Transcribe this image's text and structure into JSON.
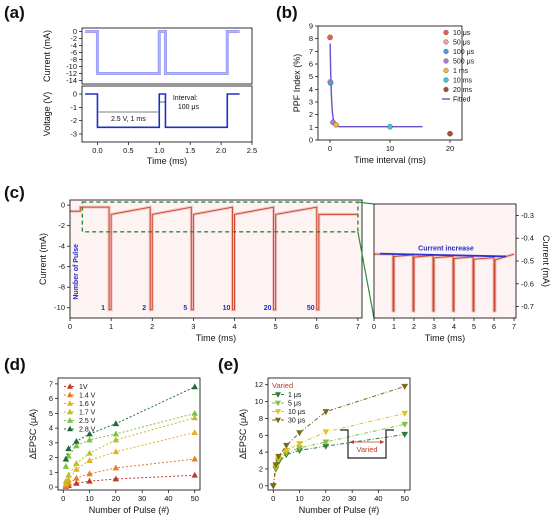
{
  "panel_labels": [
    "(a)",
    "(b)",
    "(c)",
    "(d)",
    "(e)"
  ],
  "chart_data": [
    {
      "panel": "(a)",
      "type": "line",
      "xlabel": "Time (ms)",
      "ylabel_top": "Current (mA)",
      "ylabel_bottom": "Voltage (V)",
      "x_ticks": [
        "0.0",
        "0.5",
        "1.0",
        "1.5",
        "2.0",
        "2.5"
      ],
      "y_ticks_top": [
        "0",
        "-2",
        "-4",
        "-6",
        "-8",
        "-10",
        "-12",
        "-14"
      ],
      "y_ticks_bottom": [
        "0",
        "-1",
        "-2",
        "-3"
      ],
      "xlim": [
        -0.25,
        2.5
      ],
      "annotations": [
        "2.5 V, 1 ms",
        "Interval:",
        "100 μs"
      ],
      "pulses": [
        [
          0.0,
          1.0
        ],
        [
          1.1,
          2.1
        ]
      ],
      "pulse_voltage": -2.5,
      "current_baseline": 0,
      "current_plateau": -12
    },
    {
      "panel": "(b)",
      "type": "scatter",
      "xlabel": "Time interval (ms)",
      "ylabel": "PPF Index (%)",
      "x_ticks": [
        "0",
        "10",
        "20"
      ],
      "y_ticks": [
        "0",
        "1",
        "2",
        "3",
        "4",
        "5",
        "6",
        "7",
        "8",
        "9"
      ],
      "xlim": [
        -2,
        22
      ],
      "ylim": [
        0,
        9
      ],
      "series": [
        {
          "name": "10 μs",
          "color": "#e8614a",
          "points": [
            [
              0.01,
              8.1
            ]
          ]
        },
        {
          "name": "50 μs",
          "color": "#f0a0a0",
          "points": [
            [
              0.05,
              4.6
            ]
          ]
        },
        {
          "name": "100 μs",
          "color": "#4aa3df",
          "points": [
            [
              0.1,
              4.5
            ]
          ]
        },
        {
          "name": "500 μs",
          "color": "#b07ad0",
          "points": [
            [
              0.5,
              1.4
            ]
          ]
        },
        {
          "name": "1 ms",
          "color": "#f2b632",
          "points": [
            [
              1,
              1.2
            ]
          ]
        },
        {
          "name": "10 ms",
          "color": "#3ec6d6",
          "points": [
            [
              10,
              1.05
            ]
          ]
        },
        {
          "name": "20 ms",
          "color": "#a0522d",
          "points": [
            [
              20,
              0.5
            ]
          ]
        }
      ],
      "fitted_label": "Fitted",
      "fit_color": "#6a4fc7"
    },
    {
      "panel": "(c)",
      "type": "line",
      "xlabel_left": "Time (ms)",
      "xlabel_right": "Time (ms)",
      "ylabel_left": "Current (mA)",
      "ylabel_right": "Current (mA)",
      "x_ticks": [
        "0",
        "1",
        "2",
        "3",
        "4",
        "5",
        "6",
        "7"
      ],
      "y_ticks_left": [
        "0",
        "-2",
        "-4",
        "-6",
        "-8",
        "-10"
      ],
      "y_ticks_right": [
        "-0.3",
        "-0.4",
        "-0.5",
        "-0.6",
        "-0.7"
      ],
      "pulse_numbers": [
        "1",
        "2",
        "5",
        "10",
        "20",
        "50"
      ],
      "pulse_end_times": [
        1,
        2,
        3,
        4,
        5,
        6.05
      ],
      "annotation_left": "Number of Pulse",
      "annotation_right": "Current increase"
    },
    {
      "panel": "(d)",
      "type": "line",
      "xlabel": "Number of Pulse (#)",
      "ylabel": "ΔEPSC (μA)",
      "x_ticks": [
        "0",
        "10",
        "20",
        "30",
        "40",
        "50"
      ],
      "y_ticks": [
        "0",
        "1",
        "2",
        "3",
        "4",
        "5",
        "6",
        "7"
      ],
      "xlim": [
        -2,
        52
      ],
      "ylim": [
        -0.2,
        7.4
      ],
      "x": [
        1,
        2,
        5,
        10,
        20,
        50
      ],
      "series": [
        {
          "name": "1V",
          "color": "#c0392b",
          "values": [
            0.05,
            0.1,
            0.25,
            0.4,
            0.55,
            0.8
          ]
        },
        {
          "name": "1.4 V",
          "color": "#e67e22",
          "values": [
            0.1,
            0.2,
            0.6,
            0.9,
            1.3,
            1.9
          ]
        },
        {
          "name": "1.6 V",
          "color": "#e3b31f",
          "values": [
            0.2,
            0.5,
            1.2,
            1.8,
            2.4,
            3.7
          ]
        },
        {
          "name": "1.7 V",
          "color": "#bdbf2a",
          "values": [
            0.4,
            0.8,
            1.6,
            2.3,
            3.2,
            4.7
          ]
        },
        {
          "name": "2.5 V",
          "color": "#7cc243",
          "values": [
            1.4,
            2.1,
            2.8,
            3.2,
            3.6,
            5.0
          ]
        },
        {
          "name": "2.8 V",
          "color": "#1f6b3a",
          "values": [
            1.9,
            2.6,
            3.1,
            3.6,
            4.3,
            6.8
          ]
        }
      ]
    },
    {
      "panel": "(e)",
      "type": "line",
      "xlabel": "Number of Pulse (#)",
      "ylabel": "ΔEPSC (μA)",
      "x_ticks": [
        "0",
        "10",
        "20",
        "30",
        "40",
        "50"
      ],
      "y_ticks": [
        "0",
        "2",
        "4",
        "6",
        "8",
        "10",
        "12"
      ],
      "xlim": [
        -2,
        52
      ],
      "ylim": [
        -0.5,
        12.8
      ],
      "legend_title": "Varied",
      "inset_label": "Varied",
      "x": [
        0,
        1,
        2,
        5,
        10,
        20,
        50
      ],
      "series": [
        {
          "name": "1  μs",
          "color": "#2e7d32",
          "values": [
            0.0,
            2.0,
            2.8,
            3.7,
            4.2,
            4.7,
            6.1
          ]
        },
        {
          "name": "5  μs",
          "color": "#8bbf3a",
          "values": [
            0.0,
            2.1,
            3.0,
            3.9,
            4.5,
            5.2,
            7.3
          ]
        },
        {
          "name": "10  μs",
          "color": "#e3c11f",
          "values": [
            0.0,
            2.3,
            3.2,
            4.2,
            5.0,
            6.4,
            8.6
          ]
        },
        {
          "name": "30  μs",
          "color": "#7a6a1d",
          "values": [
            0.0,
            2.5,
            3.5,
            4.8,
            6.3,
            8.8,
            11.8
          ]
        }
      ]
    }
  ]
}
